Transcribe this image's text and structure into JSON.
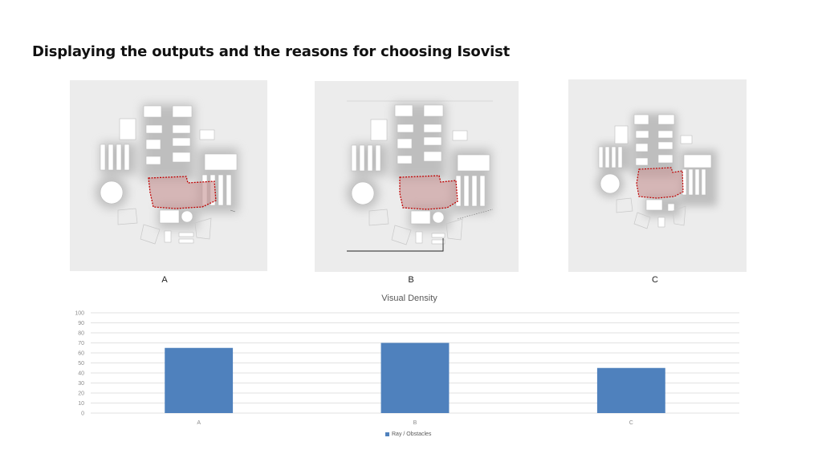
{
  "slide": {
    "title": "Displaying the outputs and the reasons for choosing Isovist"
  },
  "panels": [
    {
      "label": "A"
    },
    {
      "label": "B"
    },
    {
      "label": "C"
    }
  ],
  "colors": {
    "bar": "#4f81bd",
    "isovist_fill": "#c99a9a",
    "isovist_edge": "#c00000",
    "panel_bg": "#ececec"
  },
  "chart_data": {
    "type": "bar",
    "title": "Visual Density",
    "categories": [
      "A",
      "B",
      "C"
    ],
    "series": [
      {
        "name": "Ray / Obstacles",
        "values": [
          65,
          70,
          45
        ]
      }
    ],
    "ylim": [
      0,
      100
    ],
    "yticks": [
      0,
      10,
      20,
      30,
      40,
      50,
      60,
      70,
      80,
      90,
      100
    ],
    "grid": true,
    "legend_position": "bottom"
  }
}
